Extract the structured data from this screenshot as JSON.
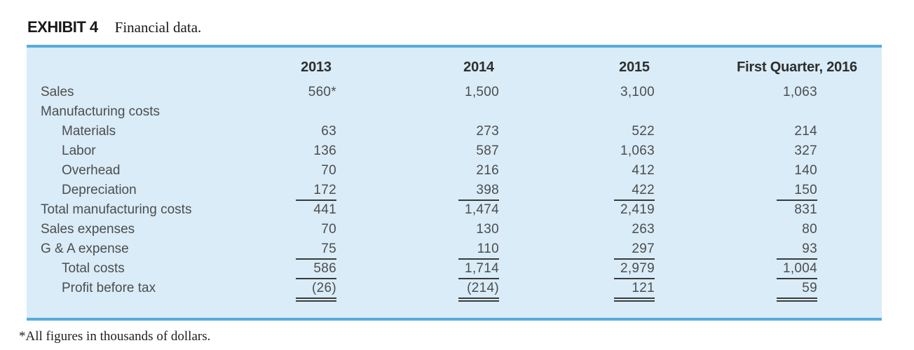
{
  "exhibit": {
    "label": "EXHIBIT 4",
    "title": "Financial data."
  },
  "table": {
    "columns": [
      "2013",
      "2014",
      "2015",
      "First Quarter, 2016"
    ],
    "rows": [
      {
        "label": "Sales",
        "indent": 0,
        "values": [
          "560*",
          "1,500",
          "3,100",
          "1,063"
        ],
        "underline": "none"
      },
      {
        "label": "Manufacturing costs",
        "indent": 0,
        "values": [
          "",
          "",
          "",
          ""
        ],
        "underline": "none"
      },
      {
        "label": "Materials",
        "indent": 1,
        "values": [
          "63",
          "273",
          "522",
          "214"
        ],
        "underline": "none"
      },
      {
        "label": "Labor",
        "indent": 1,
        "values": [
          "136",
          "587",
          "1,063",
          "327"
        ],
        "underline": "none"
      },
      {
        "label": "Overhead",
        "indent": 1,
        "values": [
          "70",
          "216",
          "412",
          "140"
        ],
        "underline": "none"
      },
      {
        "label": "Depreciation",
        "indent": 1,
        "values": [
          "172",
          "398",
          "422",
          "150"
        ],
        "underline": "single"
      },
      {
        "label": "Total manufacturing costs",
        "indent": 0,
        "values": [
          "441",
          "1,474",
          "2,419",
          "831"
        ],
        "underline": "none"
      },
      {
        "label": "Sales expenses",
        "indent": 0,
        "values": [
          "70",
          "130",
          "263",
          "80"
        ],
        "underline": "none"
      },
      {
        "label": "G & A expense",
        "indent": 0,
        "values": [
          "75",
          "110",
          "297",
          "93"
        ],
        "underline": "single"
      },
      {
        "label": "Total costs",
        "indent": 1,
        "values": [
          "586",
          "1,714",
          "2,979",
          "1,004"
        ],
        "underline": "single"
      },
      {
        "label": "Profit before tax",
        "indent": 1,
        "values": [
          "(26)",
          "(214)",
          "121",
          "59"
        ],
        "underline": "double"
      }
    ]
  },
  "footnote": "*All figures in thousands of dollars.",
  "colors": {
    "table_bg": "#d9ecf8",
    "table_border": "#58abdc",
    "text": "#4d4d4d",
    "header_text": "#2e2e2e",
    "rule": "#3a3a3a"
  }
}
